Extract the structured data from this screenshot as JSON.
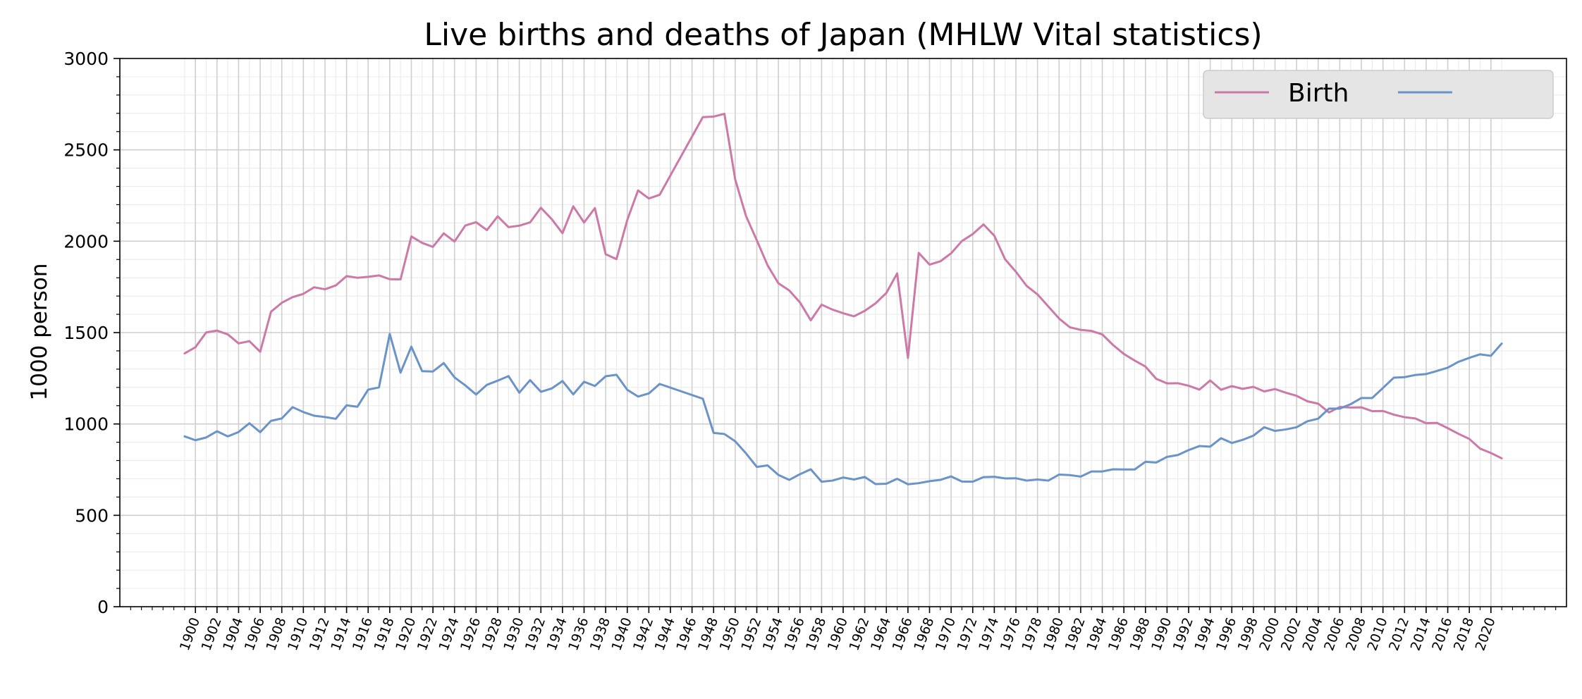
{
  "chart_data": {
    "type": "line",
    "title": "Live births and deaths of Japan (MHLW Vital statistics)",
    "xlabel": "",
    "ylabel": "1000 person",
    "xlim": [
      1893,
      2027
    ],
    "ylim": [
      0,
      3000
    ],
    "yticks": [
      0,
      500,
      1000,
      1500,
      2000,
      2500,
      3000
    ],
    "xticks": [
      1900,
      1902,
      1904,
      1906,
      1908,
      1910,
      1912,
      1914,
      1916,
      1918,
      1920,
      1922,
      1924,
      1926,
      1928,
      1930,
      1932,
      1934,
      1936,
      1938,
      1940,
      1942,
      1944,
      1946,
      1948,
      1950,
      1952,
      1954,
      1956,
      1958,
      1960,
      1962,
      1964,
      1966,
      1968,
      1970,
      1972,
      1974,
      1976,
      1978,
      1980,
      1982,
      1984,
      1986,
      1988,
      1990,
      1992,
      1994,
      1996,
      1998,
      2000,
      2002,
      2004,
      2006,
      2008,
      2010,
      2012,
      2014,
      2016,
      2018,
      2020
    ],
    "grid": true,
    "legend": {
      "placement": "top-right",
      "entries": [
        "Birth",
        ""
      ]
    },
    "colors": {
      "birth": "#cc79a7",
      "death": "#6a93c8",
      "grid_major": "#cfcfcf",
      "grid_minor": "#ececec",
      "legend_bg": "#e5e5e5"
    },
    "series": [
      {
        "name": "Birth",
        "points": [
          [
            1899,
            1386
          ],
          [
            1900,
            1420
          ],
          [
            1901,
            1501
          ],
          [
            1902,
            1511
          ],
          [
            1903,
            1490
          ],
          [
            1904,
            1441
          ],
          [
            1905,
            1453
          ],
          [
            1906,
            1395
          ],
          [
            1907,
            1614
          ],
          [
            1908,
            1663
          ],
          [
            1909,
            1694
          ],
          [
            1910,
            1712
          ],
          [
            1911,
            1748
          ],
          [
            1912,
            1737
          ],
          [
            1913,
            1758
          ],
          [
            1914,
            1809
          ],
          [
            1915,
            1800
          ],
          [
            1916,
            1805
          ],
          [
            1917,
            1813
          ],
          [
            1918,
            1792
          ],
          [
            1919,
            1791
          ],
          [
            1920,
            2026
          ],
          [
            1921,
            1991
          ],
          [
            1922,
            1969
          ],
          [
            1923,
            2043
          ],
          [
            1924,
            1998
          ],
          [
            1925,
            2086
          ],
          [
            1926,
            2104
          ],
          [
            1927,
            2061
          ],
          [
            1928,
            2136
          ],
          [
            1929,
            2077
          ],
          [
            1930,
            2085
          ],
          [
            1931,
            2103
          ],
          [
            1932,
            2183
          ],
          [
            1933,
            2121
          ],
          [
            1934,
            2044
          ],
          [
            1935,
            2191
          ],
          [
            1936,
            2102
          ],
          [
            1937,
            2181
          ],
          [
            1938,
            1929
          ],
          [
            1939,
            1902
          ],
          [
            1940,
            2116
          ],
          [
            1941,
            2278
          ],
          [
            1942,
            2234
          ],
          [
            1943,
            2254
          ],
          [
            1947,
            2679
          ],
          [
            1948,
            2682
          ],
          [
            1949,
            2697
          ],
          [
            1950,
            2338
          ],
          [
            1951,
            2138
          ],
          [
            1952,
            2005
          ],
          [
            1953,
            1868
          ],
          [
            1954,
            1770
          ],
          [
            1955,
            1731
          ],
          [
            1956,
            1665
          ],
          [
            1957,
            1567
          ],
          [
            1958,
            1653
          ],
          [
            1959,
            1626
          ],
          [
            1960,
            1606
          ],
          [
            1961,
            1589
          ],
          [
            1962,
            1619
          ],
          [
            1963,
            1660
          ],
          [
            1964,
            1717
          ],
          [
            1965,
            1824
          ],
          [
            1966,
            1361
          ],
          [
            1967,
            1936
          ],
          [
            1968,
            1872
          ],
          [
            1969,
            1890
          ],
          [
            1970,
            1934
          ],
          [
            1971,
            2001
          ],
          [
            1972,
            2039
          ],
          [
            1973,
            2092
          ],
          [
            1974,
            2030
          ],
          [
            1975,
            1901
          ],
          [
            1976,
            1833
          ],
          [
            1977,
            1755
          ],
          [
            1978,
            1709
          ],
          [
            1979,
            1643
          ],
          [
            1980,
            1577
          ],
          [
            1981,
            1529
          ],
          [
            1982,
            1515
          ],
          [
            1983,
            1509
          ],
          [
            1984,
            1490
          ],
          [
            1985,
            1432
          ],
          [
            1986,
            1383
          ],
          [
            1987,
            1347
          ],
          [
            1988,
            1314
          ],
          [
            1989,
            1247
          ],
          [
            1990,
            1222
          ],
          [
            1991,
            1223
          ],
          [
            1992,
            1209
          ],
          [
            1993,
            1188
          ],
          [
            1994,
            1238
          ],
          [
            1995,
            1187
          ],
          [
            1996,
            1207
          ],
          [
            1997,
            1192
          ],
          [
            1998,
            1203
          ],
          [
            1999,
            1178
          ],
          [
            2000,
            1191
          ],
          [
            2001,
            1171
          ],
          [
            2002,
            1154
          ],
          [
            2003,
            1124
          ],
          [
            2004,
            1111
          ],
          [
            2005,
            1063
          ],
          [
            2006,
            1093
          ],
          [
            2007,
            1090
          ],
          [
            2008,
            1091
          ],
          [
            2009,
            1070
          ],
          [
            2010,
            1071
          ],
          [
            2011,
            1051
          ],
          [
            2012,
            1037
          ],
          [
            2013,
            1030
          ],
          [
            2014,
            1004
          ],
          [
            2015,
            1006
          ],
          [
            2016,
            977
          ],
          [
            2017,
            946
          ],
          [
            2018,
            918
          ],
          [
            2019,
            865
          ],
          [
            2020,
            841
          ],
          [
            2021,
            812
          ]
        ]
      },
      {
        "points": [
          [
            1899,
            932
          ],
          [
            1900,
            911
          ],
          [
            1901,
            926
          ],
          [
            1902,
            960
          ],
          [
            1903,
            932
          ],
          [
            1904,
            956
          ],
          [
            1905,
            1004
          ],
          [
            1906,
            955
          ],
          [
            1907,
            1017
          ],
          [
            1908,
            1030
          ],
          [
            1909,
            1092
          ],
          [
            1910,
            1065
          ],
          [
            1911,
            1045
          ],
          [
            1912,
            1038
          ],
          [
            1913,
            1028
          ],
          [
            1914,
            1102
          ],
          [
            1915,
            1094
          ],
          [
            1916,
            1188
          ],
          [
            1917,
            1200
          ],
          [
            1918,
            1493
          ],
          [
            1919,
            1281
          ],
          [
            1920,
            1423
          ],
          [
            1921,
            1289
          ],
          [
            1922,
            1287
          ],
          [
            1923,
            1333
          ],
          [
            1924,
            1255
          ],
          [
            1925,
            1211
          ],
          [
            1926,
            1161
          ],
          [
            1927,
            1214
          ],
          [
            1928,
            1237
          ],
          [
            1929,
            1262
          ],
          [
            1930,
            1171
          ],
          [
            1931,
            1240
          ],
          [
            1932,
            1176
          ],
          [
            1933,
            1194
          ],
          [
            1934,
            1235
          ],
          [
            1935,
            1162
          ],
          [
            1936,
            1231
          ],
          [
            1937,
            1208
          ],
          [
            1938,
            1261
          ],
          [
            1939,
            1269
          ],
          [
            1940,
            1187
          ],
          [
            1941,
            1150
          ],
          [
            1942,
            1167
          ],
          [
            1943,
            1219
          ],
          [
            1947,
            1138
          ],
          [
            1948,
            951
          ],
          [
            1949,
            945
          ],
          [
            1950,
            905
          ],
          [
            1951,
            839
          ],
          [
            1952,
            765
          ],
          [
            1953,
            773
          ],
          [
            1954,
            721
          ],
          [
            1955,
            694
          ],
          [
            1956,
            725
          ],
          [
            1957,
            752
          ],
          [
            1958,
            684
          ],
          [
            1959,
            690
          ],
          [
            1960,
            707
          ],
          [
            1961,
            696
          ],
          [
            1962,
            710
          ],
          [
            1963,
            671
          ],
          [
            1964,
            673
          ],
          [
            1965,
            700
          ],
          [
            1966,
            670
          ],
          [
            1967,
            676
          ],
          [
            1968,
            687
          ],
          [
            1969,
            694
          ],
          [
            1970,
            713
          ],
          [
            1971,
            685
          ],
          [
            1972,
            684
          ],
          [
            1973,
            709
          ],
          [
            1974,
            711
          ],
          [
            1975,
            702
          ],
          [
            1976,
            703
          ],
          [
            1977,
            690
          ],
          [
            1978,
            696
          ],
          [
            1979,
            690
          ],
          [
            1980,
            723
          ],
          [
            1981,
            720
          ],
          [
            1982,
            712
          ],
          [
            1983,
            740
          ],
          [
            1984,
            740
          ],
          [
            1985,
            752
          ],
          [
            1986,
            751
          ],
          [
            1987,
            751
          ],
          [
            1988,
            793
          ],
          [
            1989,
            789
          ],
          [
            1990,
            820
          ],
          [
            1991,
            830
          ],
          [
            1992,
            857
          ],
          [
            1993,
            879
          ],
          [
            1994,
            876
          ],
          [
            1995,
            922
          ],
          [
            1996,
            896
          ],
          [
            1997,
            913
          ],
          [
            1998,
            936
          ],
          [
            1999,
            982
          ],
          [
            2000,
            962
          ],
          [
            2001,
            970
          ],
          [
            2002,
            982
          ],
          [
            2003,
            1015
          ],
          [
            2004,
            1029
          ],
          [
            2005,
            1084
          ],
          [
            2006,
            1084
          ],
          [
            2007,
            1108
          ],
          [
            2008,
            1142
          ],
          [
            2009,
            1142
          ],
          [
            2010,
            1197
          ],
          [
            2011,
            1253
          ],
          [
            2012,
            1256
          ],
          [
            2013,
            1268
          ],
          [
            2014,
            1273
          ],
          [
            2015,
            1290
          ],
          [
            2016,
            1308
          ],
          [
            2017,
            1340
          ],
          [
            2018,
            1362
          ],
          [
            2019,
            1381
          ],
          [
            2020,
            1373
          ],
          [
            2021,
            1440
          ]
        ]
      }
    ]
  }
}
